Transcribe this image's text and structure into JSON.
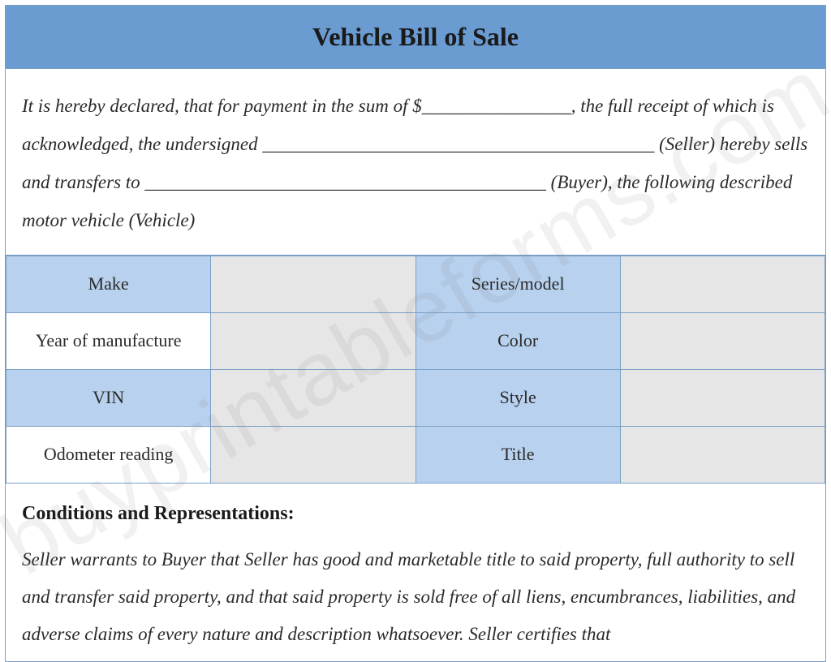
{
  "header": {
    "title": "Vehicle Bill of Sale"
  },
  "declaration": {
    "text": "It is hereby declared, that for payment in the sum of $________________, the full receipt of which is acknowledged, the undersigned __________________________________________ (Seller) hereby sells and transfers to ___________________________________________ (Buyer), the following described motor vehicle (Vehicle)"
  },
  "vehicle_fields": {
    "rows": [
      {
        "left_label": "Make",
        "left_value": "",
        "right_label": "Series/model",
        "right_value": "",
        "left_bg": "blue",
        "value_bg": "grey",
        "right_bg": "blue",
        "right_value_bg": "grey"
      },
      {
        "left_label": "Year of manufacture",
        "left_value": "",
        "right_label": "Color",
        "right_value": "",
        "left_bg": "white",
        "value_bg": "grey",
        "right_bg": "blue",
        "right_value_bg": "grey"
      },
      {
        "left_label": "VIN",
        "left_value": "",
        "right_label": "Style",
        "right_value": "",
        "left_bg": "blue",
        "value_bg": "grey",
        "right_bg": "blue",
        "right_value_bg": "grey"
      },
      {
        "left_label": "Odometer reading",
        "left_value": "",
        "right_label": "Title",
        "right_value": "",
        "left_bg": "white",
        "value_bg": "grey",
        "right_bg": "blue",
        "right_value_bg": "grey"
      }
    ]
  },
  "conditions": {
    "heading": "Conditions and Representations:",
    "body": "Seller warrants to Buyer that Seller has good and marketable title to said property, full authority to sell and transfer said property, and that said property is sold free of all liens, encumbrances, liabilities, and adverse claims of every nature and description whatsoever. Seller certifies that"
  },
  "watermark": {
    "text": "buyprintableforms.com"
  },
  "colors": {
    "header_bg": "#6a9bd1",
    "border": "#7a9fc7",
    "label_blue": "#b8d1ee",
    "value_grey": "#e6e6e6",
    "text": "#2a2a2a"
  }
}
